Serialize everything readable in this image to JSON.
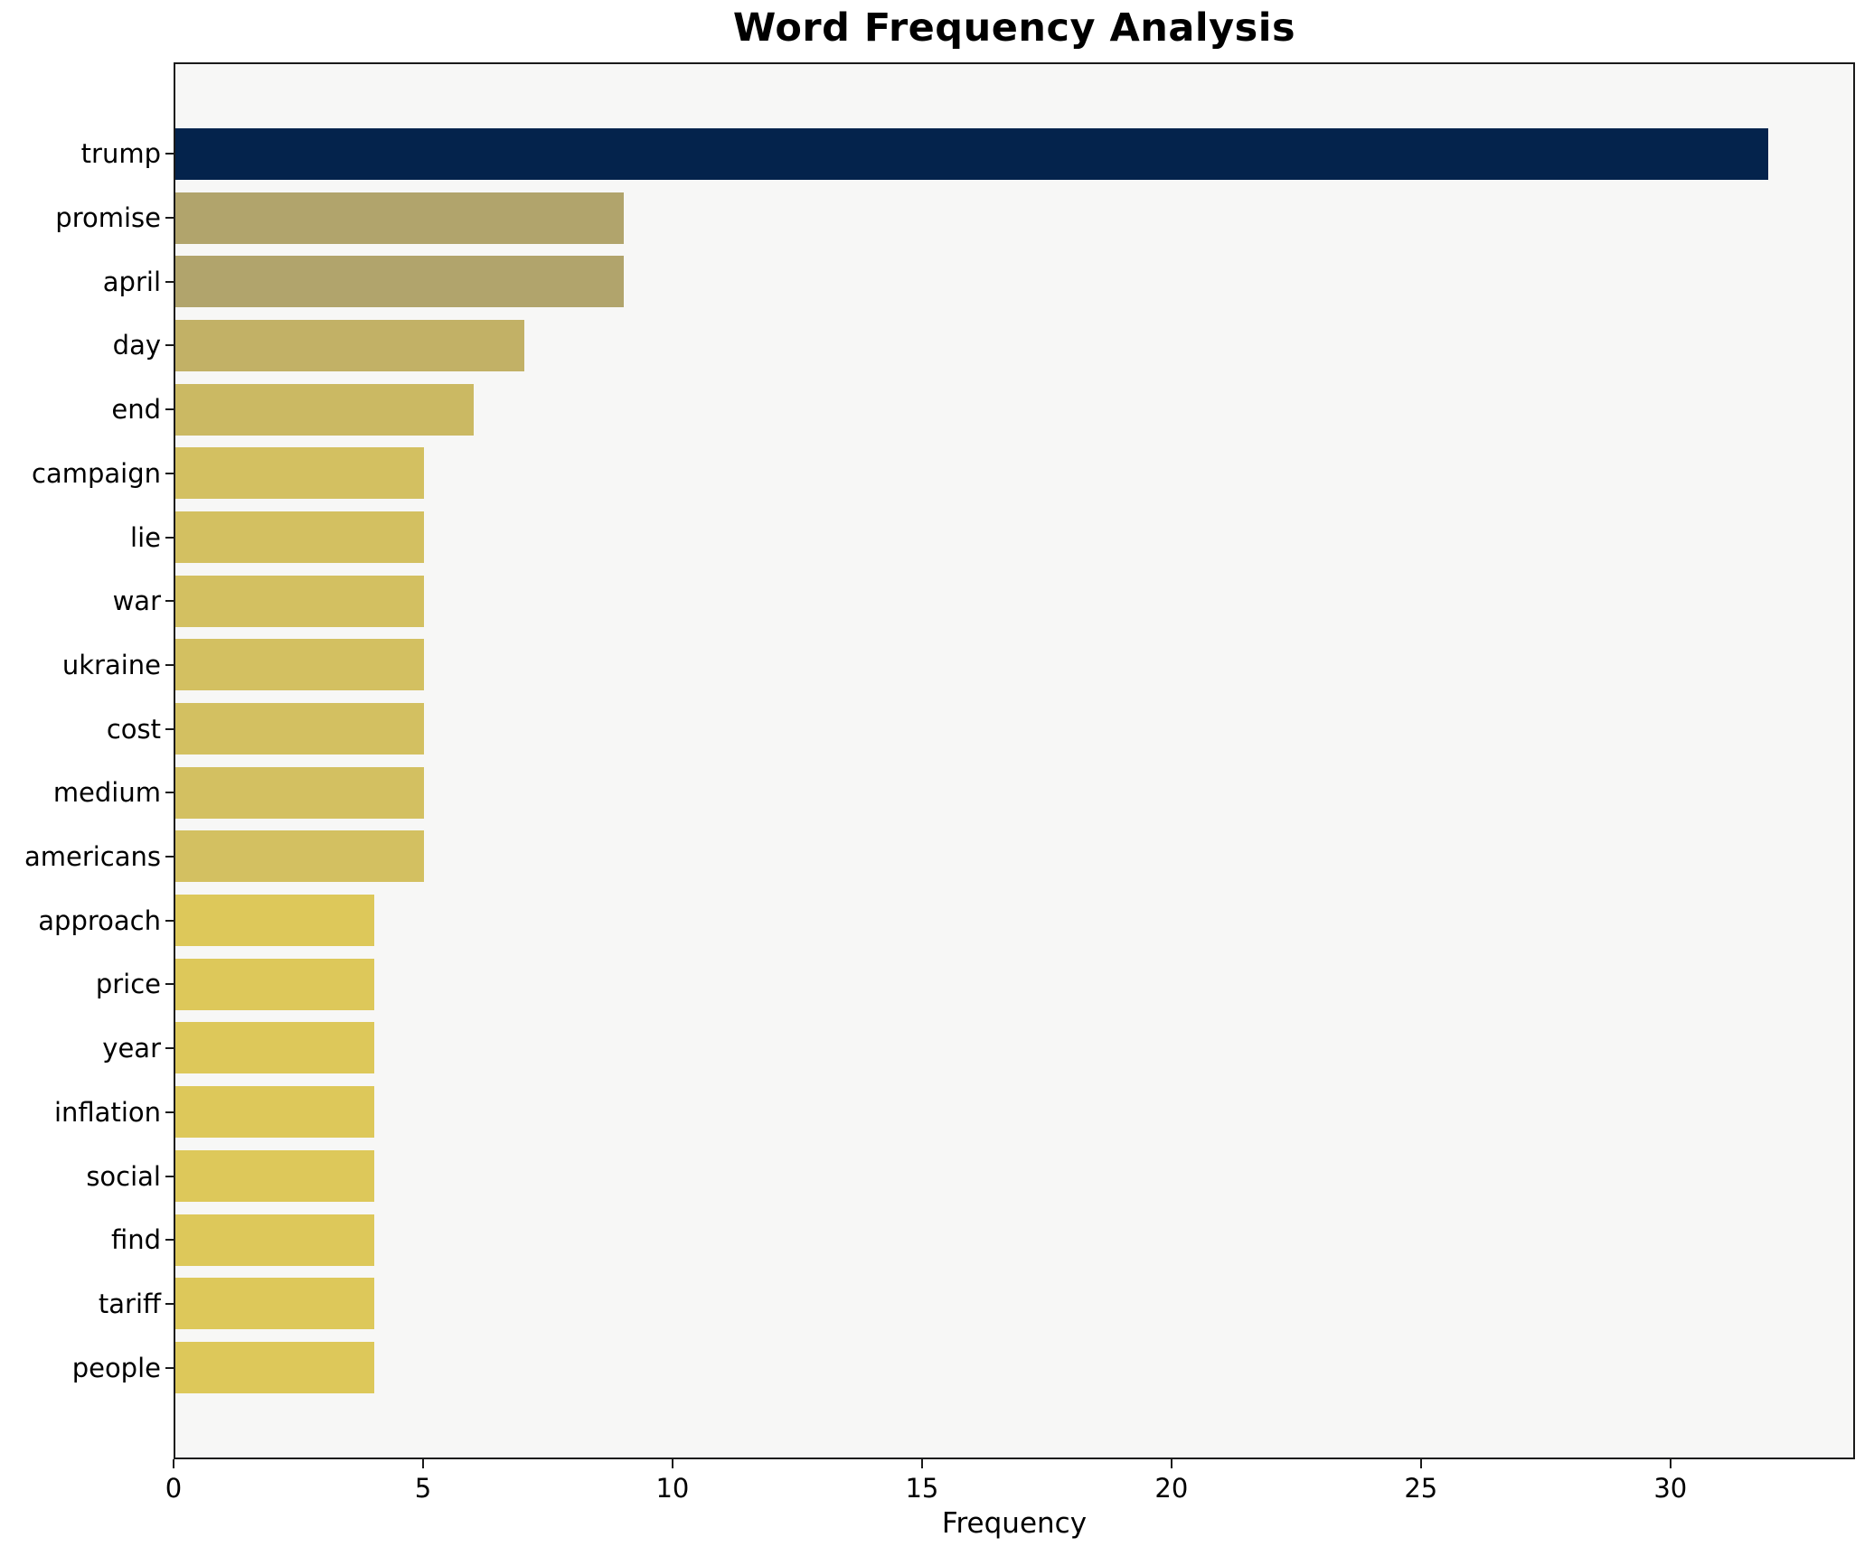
{
  "figure": {
    "title": "Word Frequency Analysis",
    "background": "#ffffff"
  },
  "axes": {
    "xlabel": "Frequency",
    "x_tick_labels": [
      "0",
      "5",
      "10",
      "15",
      "20",
      "25",
      "30"
    ],
    "x_ticks": [
      0,
      5,
      10,
      15,
      20,
      25,
      30
    ],
    "xlim": [
      0,
      33.7
    ],
    "plot_background": "#f7f7f6",
    "spine_color": "#1a1a1a",
    "text_color": "#000000"
  },
  "chart_data": {
    "type": "bar",
    "orientation": "horizontal",
    "title": "Word Frequency Analysis",
    "xlabel": "Frequency",
    "ylabel": "",
    "xlim": [
      0,
      33.7
    ],
    "grid": false,
    "legend": null,
    "categories": [
      "trump",
      "promise",
      "april",
      "day",
      "end",
      "campaign",
      "lie",
      "war",
      "ukraine",
      "cost",
      "medium",
      "americans",
      "approach",
      "price",
      "year",
      "inflation",
      "social",
      "find",
      "tariff",
      "people"
    ],
    "values": [
      32,
      9,
      9,
      7,
      6,
      5,
      5,
      5,
      5,
      5,
      5,
      5,
      4,
      4,
      4,
      4,
      4,
      4,
      4,
      4
    ],
    "bar_colors": [
      "#04234c",
      "#b1a46c",
      "#b1a46c",
      "#c2b166",
      "#cbb963",
      "#d3c061",
      "#d3c061",
      "#d3c061",
      "#d3c061",
      "#d3c061",
      "#d3c061",
      "#d3c061",
      "#ddc85a",
      "#ddc85a",
      "#ddc85a",
      "#ddc85a",
      "#ddc85a",
      "#ddc85a",
      "#ddc85a",
      "#ddc85a"
    ]
  }
}
